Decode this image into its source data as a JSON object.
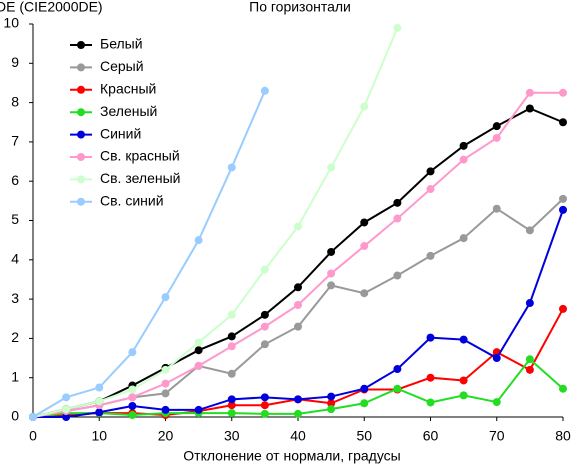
{
  "chart_data": {
    "type": "line",
    "title": "По горизонтали",
    "y_label": "DE (CIE2000DE)",
    "x_label": "Отклонение от нормали, градусы",
    "x": [
      0,
      5,
      10,
      15,
      20,
      25,
      30,
      35,
      40,
      45,
      50,
      55,
      60,
      65,
      70,
      75,
      80
    ],
    "xlim": [
      0,
      80
    ],
    "xticks": [
      0,
      10,
      20,
      30,
      40,
      50,
      60,
      70,
      80
    ],
    "ylim": [
      0,
      10
    ],
    "yticks": [
      0,
      1,
      2,
      3,
      4,
      5,
      6,
      7,
      8,
      9,
      10
    ],
    "grid": false,
    "legend": "upper left",
    "series": [
      {
        "name": "Белый",
        "color": "#000000",
        "values": [
          0,
          0.2,
          0.4,
          0.8,
          1.25,
          1.7,
          2.05,
          2.6,
          3.3,
          4.2,
          4.95,
          5.45,
          6.25,
          6.9,
          7.4,
          7.85,
          7.5
        ]
      },
      {
        "name": "Серый",
        "color": "#999999",
        "values": [
          0,
          0.15,
          0.3,
          0.5,
          0.6,
          1.3,
          1.1,
          1.85,
          2.3,
          3.35,
          3.15,
          3.6,
          4.1,
          4.55,
          5.3,
          4.75,
          5.55
        ]
      },
      {
        "name": "Красный",
        "color": "#ff0000",
        "values": [
          0,
          0.05,
          0.1,
          0.1,
          0.05,
          0.15,
          0.3,
          0.3,
          0.45,
          0.35,
          0.7,
          0.7,
          1.0,
          0.93,
          1.65,
          1.2,
          2.75
        ]
      },
      {
        "name": "Зеленый",
        "color": "#22dd22",
        "values": [
          0,
          0.1,
          0.1,
          0.05,
          0.1,
          0.1,
          0.1,
          0.08,
          0.08,
          0.2,
          0.35,
          0.72,
          0.37,
          0.55,
          0.38,
          1.47,
          0.72
        ]
      },
      {
        "name": "Синий",
        "color": "#0000dd",
        "values": [
          0,
          0,
          0.12,
          0.28,
          0.18,
          0.18,
          0.45,
          0.5,
          0.45,
          0.52,
          0.72,
          1.22,
          2.02,
          1.97,
          1.5,
          2.9,
          5.27
        ]
      },
      {
        "name": "Св. красный",
        "color": "#ff99cc",
        "values": [
          0,
          0.15,
          0.3,
          0.5,
          0.85,
          1.3,
          1.8,
          2.3,
          2.85,
          3.65,
          4.35,
          5.05,
          5.8,
          6.55,
          7.1,
          8.25,
          8.25
        ]
      },
      {
        "name": "Св. зеленый",
        "color": "#ccffcc",
        "values": [
          0,
          0.2,
          0.4,
          0.7,
          1.2,
          1.9,
          2.6,
          3.75,
          4.85,
          6.35,
          7.9,
          9.9,
          null,
          null,
          null,
          null,
          null
        ]
      },
      {
        "name": "Св. синий",
        "color": "#99ccff",
        "values": [
          0,
          0.5,
          0.75,
          1.65,
          3.05,
          4.5,
          6.35,
          8.3,
          null,
          null,
          null,
          null,
          null,
          null,
          null,
          null,
          null
        ]
      }
    ]
  }
}
